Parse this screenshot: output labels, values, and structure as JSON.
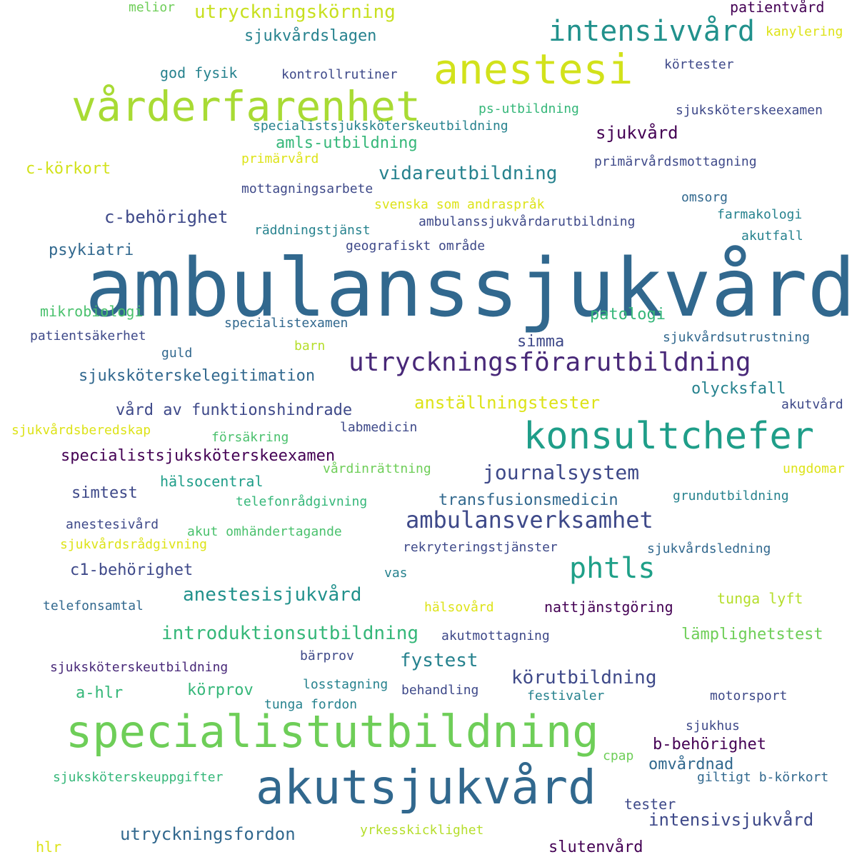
{
  "colors": {
    "background": "#ffffff",
    "palette": [
      "#440154",
      "#482878",
      "#3e4989",
      "#31688e",
      "#26828e",
      "#1f9e89",
      "#35b779",
      "#6ece58",
      "#b5de2b",
      "#fde725"
    ]
  },
  "words": [
    {
      "text": "ambulanssjukvård",
      "color": "#31688e"
    },
    {
      "text": "akutsjukvård",
      "color": "#31688e"
    },
    {
      "text": "specialistutbildning",
      "color": "#6ece58"
    },
    {
      "text": "vårderfarenhet",
      "color": "#a8db34"
    },
    {
      "text": "anestesi",
      "color": "#d2e21b"
    },
    {
      "text": "konsultchefer",
      "color": "#1f9e89"
    },
    {
      "text": "intensivvård",
      "color": "#21918c"
    },
    {
      "text": "utryckningsförarutbildning",
      "color": "#482878"
    },
    {
      "text": "phtls",
      "color": "#1fa088"
    },
    {
      "text": "ambulansverksamhet",
      "color": "#3e4989"
    },
    {
      "text": "journalsystem",
      "color": "#3e4989"
    },
    {
      "text": "utryckningskörning",
      "color": "#c8e020"
    },
    {
      "text": "sjukvårdslagen",
      "color": "#26828e"
    },
    {
      "text": "vidareutbildning",
      "color": "#26828e"
    },
    {
      "text": "c-behörighet",
      "color": "#3e4989"
    },
    {
      "text": "anställningstester",
      "color": "#dde318"
    },
    {
      "text": "specialistsjuksköterskeexamen",
      "color": "#440154"
    },
    {
      "text": "sjuksköterskelegitimation",
      "color": "#31688e"
    },
    {
      "text": "introduktionsutbildning",
      "color": "#35b779"
    },
    {
      "text": "anestesisjukvård",
      "color": "#21918c"
    },
    {
      "text": "körutbildning",
      "color": "#3e4989"
    },
    {
      "text": "utryckningsfordon",
      "color": "#31688e"
    },
    {
      "text": "intensivsjukvård",
      "color": "#3e4989"
    },
    {
      "text": "b-behörighet",
      "color": "#440154"
    },
    {
      "text": "fystest",
      "color": "#26828e"
    },
    {
      "text": "sjukvård",
      "color": "#440154"
    },
    {
      "text": "patologi",
      "color": "#35b779"
    },
    {
      "text": "transfusionsmedicin",
      "color": "#31688e"
    },
    {
      "text": "vård av funktionshindrade",
      "color": "#3e4989"
    },
    {
      "text": "lämplighetstest",
      "color": "#6ece58"
    },
    {
      "text": "olycksfall",
      "color": "#26828e"
    },
    {
      "text": "c1-behörighet",
      "color": "#3e4989"
    },
    {
      "text": "amls-utbildning",
      "color": "#35b779"
    },
    {
      "text": "c-körkort",
      "color": "#d2e21b"
    },
    {
      "text": "psykiatri",
      "color": "#31688e"
    },
    {
      "text": "mikrobiologi",
      "color": "#4ac16d"
    },
    {
      "text": "hälsocentral",
      "color": "#1f9e89"
    },
    {
      "text": "simtest",
      "color": "#3e4989"
    },
    {
      "text": "körprov",
      "color": "#35b779"
    },
    {
      "text": "a-hlr",
      "color": "#35b779"
    },
    {
      "text": "simma",
      "color": "#3e4989"
    },
    {
      "text": "slutenvård",
      "color": "#440154"
    },
    {
      "text": "omvårdnad",
      "color": "#31688e"
    },
    {
      "text": "god fysik",
      "color": "#26828e"
    },
    {
      "text": "nattjänstgöring",
      "color": "#440154"
    },
    {
      "text": "patientvård",
      "color": "#440154"
    },
    {
      "text": "kanylering",
      "color": "#dde318"
    },
    {
      "text": "melior",
      "color": "#6ece58"
    },
    {
      "text": "körtester",
      "color": "#3e4989"
    },
    {
      "text": "kontrollrutiner",
      "color": "#3e4989"
    },
    {
      "text": "ps-utbildning",
      "color": "#35b779"
    },
    {
      "text": "sjuksköterskeexamen",
      "color": "#3e4989"
    },
    {
      "text": "specialistsjuksköterskeutbildning",
      "color": "#26828e"
    },
    {
      "text": "primärvård",
      "color": "#dde318"
    },
    {
      "text": "primärvårdsmottagning",
      "color": "#3e4989"
    },
    {
      "text": "mottagningsarbete",
      "color": "#3e4989"
    },
    {
      "text": "omsorg",
      "color": "#31688e"
    },
    {
      "text": "svenska som andraspråk",
      "color": "#dde318"
    },
    {
      "text": "farmakologi",
      "color": "#26828e"
    },
    {
      "text": "räddningstjänst",
      "color": "#26828e"
    },
    {
      "text": "ambulanssjukvårdarutbildning",
      "color": "#3e4989"
    },
    {
      "text": "akutfall",
      "color": "#26828e"
    },
    {
      "text": "geografiskt område",
      "color": "#3e4989"
    },
    {
      "text": "specialistexamen",
      "color": "#31688e"
    },
    {
      "text": "patientsäkerhet",
      "color": "#3e4989"
    },
    {
      "text": "sjukvårdsutrustning",
      "color": "#31688e"
    },
    {
      "text": "guld",
      "color": "#31688e"
    },
    {
      "text": "barn",
      "color": "#b5de2b"
    },
    {
      "text": "akutvård",
      "color": "#3e4989"
    },
    {
      "text": "sjukvårdsberedskap",
      "color": "#dde318"
    },
    {
      "text": "försäkring",
      "color": "#4ac16d"
    },
    {
      "text": "labmedicin",
      "color": "#3e4989"
    },
    {
      "text": "vårdinrättning",
      "color": "#6ece58"
    },
    {
      "text": "ungdomar",
      "color": "#dde318"
    },
    {
      "text": "telefonrådgivning",
      "color": "#35b779"
    },
    {
      "text": "grundutbildning",
      "color": "#26828e"
    },
    {
      "text": "anestesivård",
      "color": "#3e4989"
    },
    {
      "text": "akut omhändertagande",
      "color": "#4ac16d"
    },
    {
      "text": "sjukvårdsrådgivning",
      "color": "#dde318"
    },
    {
      "text": "rekryteringstjänster",
      "color": "#3e4989"
    },
    {
      "text": "sjukvårdsledning",
      "color": "#31688e"
    },
    {
      "text": "vas",
      "color": "#26828e"
    },
    {
      "text": "tunga lyft",
      "color": "#b5de2b"
    },
    {
      "text": "telefonsamtal",
      "color": "#31688e"
    },
    {
      "text": "hälsovård",
      "color": "#dde318"
    },
    {
      "text": "akutmottagning",
      "color": "#3e4989"
    },
    {
      "text": "bärprov",
      "color": "#3e4989"
    },
    {
      "text": "sjuksköterskeutbildning",
      "color": "#482878"
    },
    {
      "text": "losstagning",
      "color": "#26828e"
    },
    {
      "text": "behandling",
      "color": "#3e4989"
    },
    {
      "text": "festivaler",
      "color": "#26828e"
    },
    {
      "text": "motorsport",
      "color": "#3e4989"
    },
    {
      "text": "tunga fordon",
      "color": "#26828e"
    },
    {
      "text": "sjukhus",
      "color": "#3e4989"
    },
    {
      "text": "cpap",
      "color": "#6ece58"
    },
    {
      "text": "sjuksköterskeuppgifter",
      "color": "#35b779"
    },
    {
      "text": "giltigt b-körkort",
      "color": "#31688e"
    },
    {
      "text": "tester",
      "color": "#3e4989"
    },
    {
      "text": "yrkesskicklighet",
      "color": "#b5de2b"
    },
    {
      "text": "hlr",
      "color": "#dde318"
    }
  ]
}
